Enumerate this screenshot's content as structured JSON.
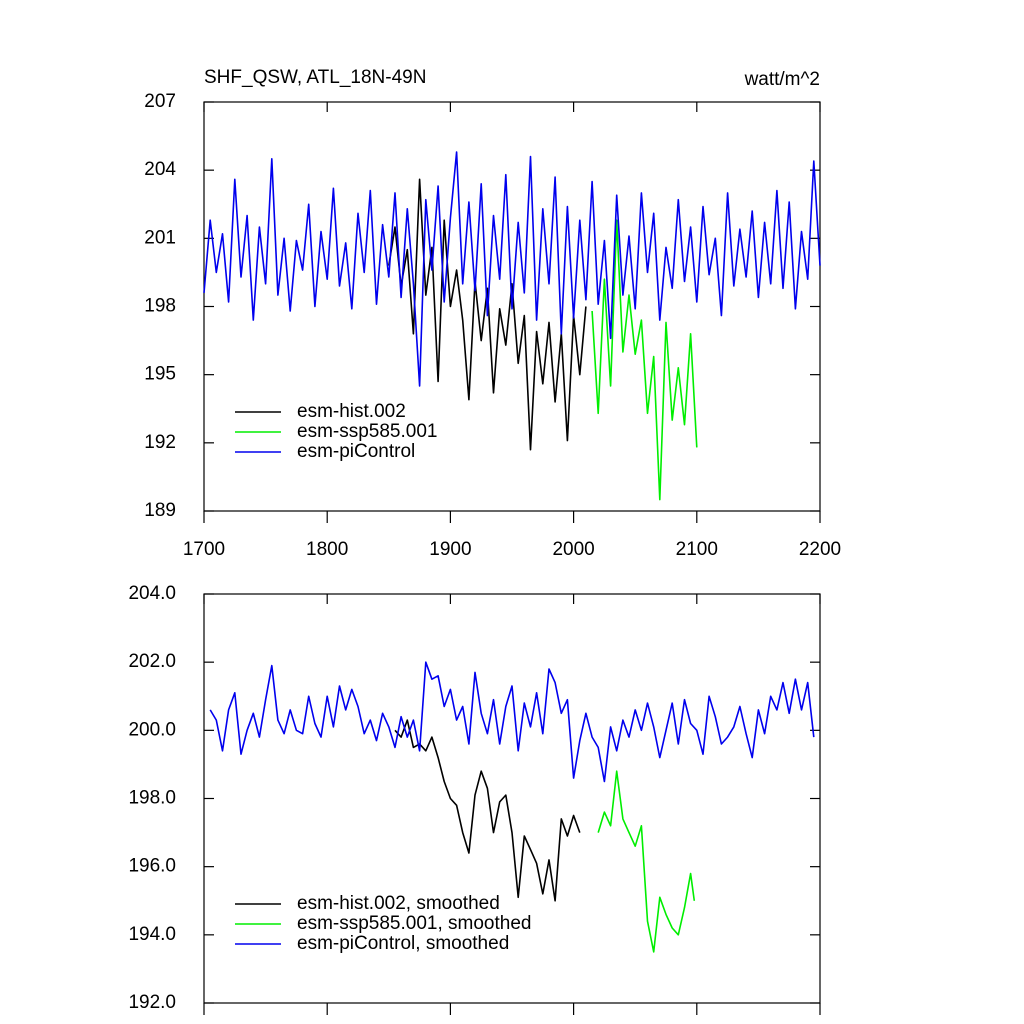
{
  "chart_data": [
    {
      "type": "line",
      "title": "SHF_QSW, ATL_18N-49N",
      "units": "watt/m^2",
      "xlim": [
        1700,
        2200
      ],
      "xticks": [
        1700,
        1800,
        1900,
        2000,
        2100,
        2200
      ],
      "ylim": [
        189,
        207
      ],
      "yticks": [
        189,
        192,
        195,
        198,
        201,
        204,
        207
      ],
      "x_tick_labels": true,
      "legend": "lower left",
      "series": [
        {
          "name": "esm-hist.002",
          "color": "#000000",
          "x": [
            1850,
            1855,
            1860,
            1865,
            1870,
            1875,
            1880,
            1885,
            1890,
            1895,
            1900,
            1905,
            1910,
            1915,
            1920,
            1925,
            1930,
            1935,
            1940,
            1945,
            1950,
            1955,
            1960,
            1965,
            1970,
            1975,
            1980,
            1985,
            1990,
            1995,
            2000,
            2005,
            2010
          ],
          "values": [
            199.8,
            201.5,
            198.9,
            200.5,
            196.8,
            203.6,
            198.5,
            200.6,
            194.7,
            201.8,
            198.0,
            199.6,
            197.4,
            193.9,
            199.1,
            196.5,
            198.8,
            194.2,
            197.9,
            196.3,
            199.0,
            195.5,
            197.6,
            191.7,
            196.9,
            194.6,
            197.3,
            193.8,
            196.8,
            192.1,
            197.6,
            195.0,
            198.0
          ]
        },
        {
          "name": "esm-ssp585.001",
          "color": "#00ee00",
          "x": [
            2015,
            2020,
            2025,
            2030,
            2035,
            2040,
            2045,
            2050,
            2055,
            2060,
            2065,
            2070,
            2075,
            2080,
            2085,
            2090,
            2095,
            2100
          ],
          "values": [
            197.8,
            193.3,
            199.2,
            194.5,
            201.8,
            196.0,
            198.5,
            195.9,
            197.4,
            193.3,
            195.8,
            189.5,
            197.3,
            193.0,
            195.3,
            192.8,
            196.8,
            191.8
          ]
        },
        {
          "name": "esm-piControl",
          "color": "#0000ee",
          "x": [
            1700,
            1705,
            1710,
            1715,
            1720,
            1725,
            1730,
            1735,
            1740,
            1745,
            1750,
            1755,
            1760,
            1765,
            1770,
            1775,
            1780,
            1785,
            1790,
            1795,
            1800,
            1805,
            1810,
            1815,
            1820,
            1825,
            1830,
            1835,
            1840,
            1845,
            1850,
            1855,
            1860,
            1865,
            1870,
            1875,
            1880,
            1885,
            1890,
            1895,
            1900,
            1905,
            1910,
            1915,
            1920,
            1925,
            1930,
            1935,
            1940,
            1945,
            1950,
            1955,
            1960,
            1965,
            1970,
            1975,
            1980,
            1985,
            1990,
            1995,
            2000,
            2005,
            2010,
            2015,
            2020,
            2025,
            2030,
            2035,
            2040,
            2045,
            2050,
            2055,
            2060,
            2065,
            2070,
            2075,
            2080,
            2085,
            2090,
            2095,
            2100,
            2105,
            2110,
            2115,
            2120,
            2125,
            2130,
            2135,
            2140,
            2145,
            2150,
            2155,
            2160,
            2165,
            2170,
            2175,
            2180,
            2185,
            2190,
            2195,
            2200
          ],
          "values": [
            198.6,
            201.8,
            199.5,
            201.2,
            198.2,
            203.6,
            199.3,
            202.0,
            197.4,
            201.5,
            199.0,
            204.5,
            198.5,
            201.0,
            197.8,
            200.9,
            199.6,
            202.5,
            198.0,
            201.3,
            199.2,
            203.2,
            198.9,
            200.8,
            197.9,
            202.1,
            199.5,
            203.1,
            198.1,
            201.6,
            199.3,
            203.0,
            198.4,
            202.3,
            199.0,
            194.5,
            202.7,
            199.6,
            203.3,
            198.2,
            201.9,
            204.8,
            199.0,
            202.6,
            198.7,
            203.4,
            197.6,
            202.0,
            199.2,
            203.8,
            197.9,
            201.7,
            198.6,
            204.6,
            197.4,
            202.3,
            199.0,
            203.7,
            196.8,
            202.4,
            197.5,
            201.8,
            198.3,
            203.5,
            198.1,
            200.9,
            196.6,
            202.9,
            198.5,
            201.1,
            197.9,
            203.0,
            199.5,
            202.1,
            197.4,
            200.6,
            198.8,
            202.7,
            199.1,
            201.5,
            198.2,
            202.4,
            199.4,
            201.0,
            197.6,
            203.0,
            198.9,
            201.4,
            199.3,
            202.2,
            198.4,
            201.7,
            199.0,
            203.1,
            198.8,
            202.6,
            197.9,
            201.3,
            199.2,
            204.4,
            199.8
          ]
        }
      ]
    },
    {
      "type": "line",
      "xlim": [
        1700,
        2200
      ],
      "xticks": [
        1700,
        1800,
        1900,
        2000,
        2100,
        2200
      ],
      "ylim": [
        192,
        204
      ],
      "yticks": [
        {
          "value": 192,
          "label": "192.0"
        },
        {
          "value": 194,
          "label": "194.0"
        },
        {
          "value": 196,
          "label": "196.0"
        },
        {
          "value": 198,
          "label": "198.0"
        },
        {
          "value": 200,
          "label": "200.0"
        },
        {
          "value": 202,
          "label": "202.0"
        },
        {
          "value": 204,
          "label": "204.0"
        }
      ],
      "x_tick_labels": false,
      "legend": "lower left",
      "series": [
        {
          "name": "esm-hist.002, smoothed",
          "color": "#000000",
          "x": [
            1855,
            1860,
            1865,
            1870,
            1875,
            1880,
            1885,
            1890,
            1895,
            1900,
            1905,
            1910,
            1915,
            1920,
            1925,
            1930,
            1935,
            1940,
            1945,
            1950,
            1955,
            1960,
            1965,
            1970,
            1975,
            1980,
            1985,
            1990,
            1995,
            2000,
            2005
          ],
          "values": [
            200.0,
            199.8,
            200.3,
            199.5,
            199.6,
            199.4,
            199.8,
            199.2,
            198.5,
            198.0,
            197.8,
            197.0,
            196.4,
            198.1,
            198.8,
            198.3,
            197.0,
            197.9,
            198.1,
            197.0,
            195.1,
            196.9,
            196.5,
            196.1,
            195.2,
            196.2,
            195.0,
            197.4,
            196.9,
            197.5,
            197.0
          ]
        },
        {
          "name": "esm-ssp585.001, smoothed",
          "color": "#00ee00",
          "x": [
            2020,
            2025,
            2030,
            2035,
            2040,
            2045,
            2050,
            2055,
            2060,
            2065,
            2070,
            2075,
            2080,
            2085,
            2090,
            2095,
            2098
          ],
          "values": [
            197.0,
            197.6,
            197.2,
            198.8,
            197.4,
            197.0,
            196.6,
            197.2,
            194.4,
            193.5,
            195.1,
            194.6,
            194.2,
            194.0,
            194.8,
            195.8,
            195.0
          ]
        },
        {
          "name": "esm-piControl, smoothed",
          "color": "#0000ee",
          "x": [
            1705,
            1710,
            1715,
            1720,
            1725,
            1730,
            1735,
            1740,
            1745,
            1750,
            1755,
            1760,
            1765,
            1770,
            1775,
            1780,
            1785,
            1790,
            1795,
            1800,
            1805,
            1810,
            1815,
            1820,
            1825,
            1830,
            1835,
            1840,
            1845,
            1850,
            1855,
            1860,
            1865,
            1870,
            1875,
            1880,
            1885,
            1890,
            1895,
            1900,
            1905,
            1910,
            1915,
            1920,
            1925,
            1930,
            1935,
            1940,
            1945,
            1950,
            1955,
            1960,
            1965,
            1970,
            1975,
            1980,
            1985,
            1990,
            1995,
            2000,
            2005,
            2010,
            2015,
            2020,
            2025,
            2030,
            2035,
            2040,
            2045,
            2050,
            2055,
            2060,
            2065,
            2070,
            2075,
            2080,
            2085,
            2090,
            2095,
            2100,
            2105,
            2110,
            2115,
            2120,
            2125,
            2130,
            2135,
            2140,
            2145,
            2150,
            2155,
            2160,
            2165,
            2170,
            2175,
            2180,
            2185,
            2190,
            2195
          ],
          "values": [
            200.6,
            200.3,
            199.4,
            200.6,
            201.1,
            199.3,
            200.0,
            200.5,
            199.8,
            200.9,
            201.9,
            200.3,
            199.9,
            200.6,
            200.0,
            199.9,
            201.0,
            200.2,
            199.8,
            201.0,
            200.1,
            201.3,
            200.6,
            201.2,
            200.7,
            199.9,
            200.3,
            199.7,
            200.5,
            200.1,
            199.5,
            200.4,
            199.8,
            200.3,
            199.4,
            202.0,
            201.5,
            201.6,
            200.7,
            201.2,
            200.3,
            200.7,
            199.6,
            201.7,
            200.5,
            199.9,
            200.9,
            199.6,
            200.7,
            201.3,
            199.4,
            200.8,
            200.1,
            201.1,
            199.9,
            201.8,
            201.4,
            200.5,
            200.9,
            198.6,
            199.7,
            200.5,
            199.8,
            199.5,
            198.5,
            200.1,
            199.4,
            200.3,
            199.8,
            200.6,
            200.0,
            200.8,
            200.1,
            199.2,
            200.0,
            200.8,
            199.6,
            200.9,
            200.2,
            200.0,
            199.3,
            201.0,
            200.4,
            199.6,
            199.8,
            200.1,
            200.7,
            199.9,
            199.2,
            200.6,
            199.9,
            201.0,
            200.6,
            201.4,
            200.5,
            201.5,
            200.6,
            201.4,
            199.8
          ]
        }
      ]
    }
  ]
}
